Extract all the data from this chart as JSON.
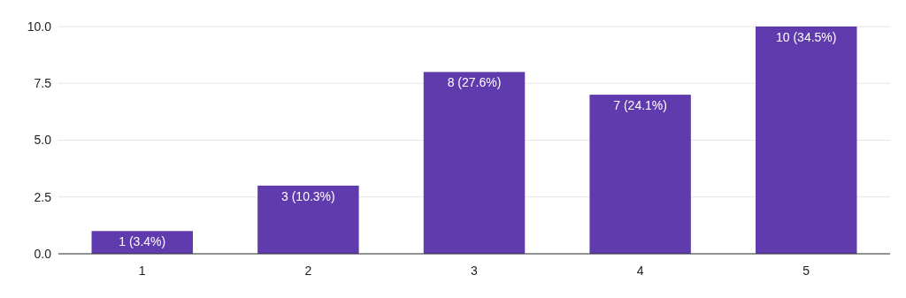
{
  "chart_data": {
    "type": "bar",
    "categories": [
      "1",
      "2",
      "3",
      "4",
      "5"
    ],
    "values": [
      1,
      3,
      8,
      7,
      10
    ],
    "value_labels": [
      "1 (3.4%)",
      "3 (10.3%)",
      "8 (27.6%)",
      "7 (24.1%)",
      "10 (34.5%)"
    ],
    "color": "#5f3bad",
    "ylim": [
      0,
      10
    ],
    "yticks": [
      {
        "value": 0,
        "label": "0.0"
      },
      2.5,
      {
        "value": 5,
        "label": "5.0"
      },
      7.5,
      {
        "value": 10,
        "label": "10.0"
      }
    ],
    "grid": "y"
  }
}
